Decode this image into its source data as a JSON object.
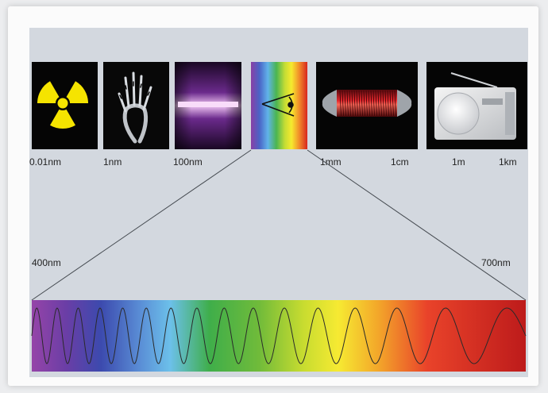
{
  "labels": {
    "gamma": "0.01nm",
    "xray": "1nm",
    "uv": "100nm",
    "ir": "1mm",
    "microwave": "1cm",
    "radio_short": "1m",
    "radio_long": "1km",
    "visible_start": "400nm",
    "visible_end": "700nm"
  },
  "icons": {
    "gamma": "radiation-icon",
    "xray": "xray-hand-icon",
    "uv": "uv-lamp-icon",
    "visible": "eye-icon",
    "microwave": "microwave-tube-icon",
    "radio": "radio-icon"
  },
  "colors": {
    "panel_bg": "#d3d8df",
    "tile_bg": "#050505",
    "radiation_yellow": "#f5e400",
    "infrared_red": "#d4141c"
  },
  "visible_spectrum": {
    "colors": [
      "#8a3fa5",
      "#4047b0",
      "#5aa6e6",
      "#46b048",
      "#9acb30",
      "#f4ec2c",
      "#f39c20",
      "#e5342a",
      "#c01c1c"
    ],
    "wave_cycles": 15.5
  }
}
